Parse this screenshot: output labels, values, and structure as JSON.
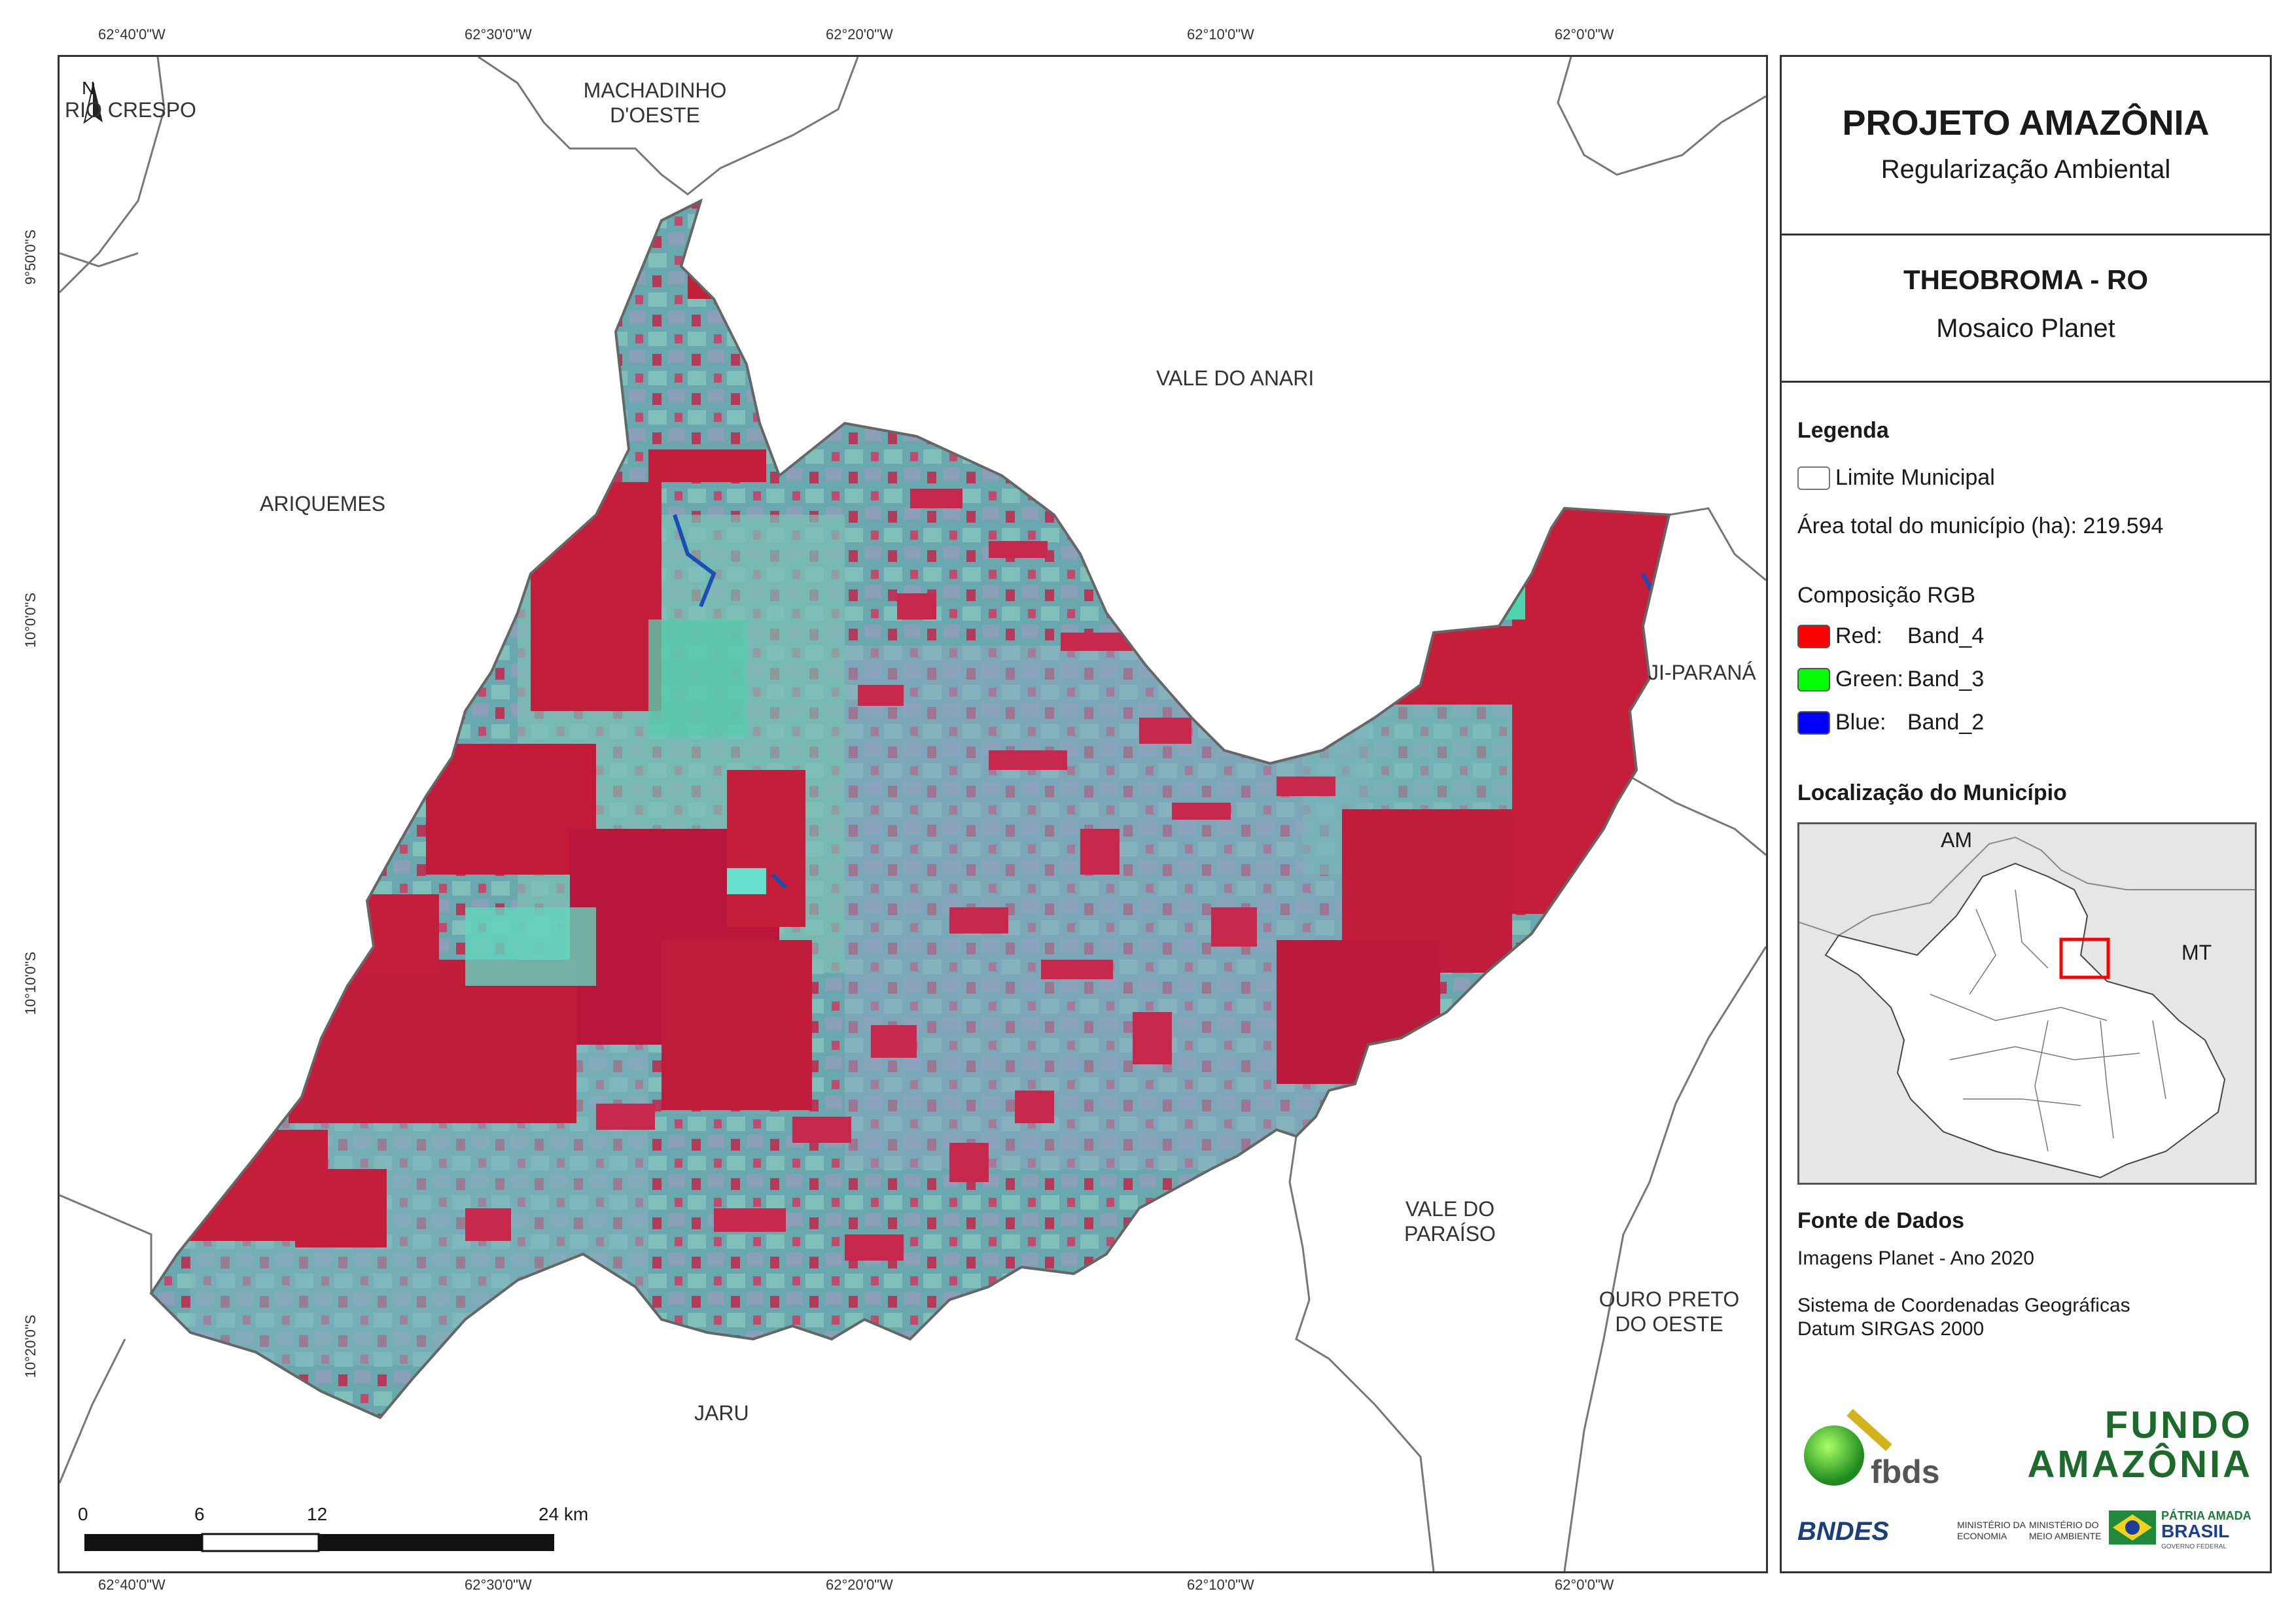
{
  "colors": {
    "frame": "#333333",
    "forest_red": "#c41e3a",
    "pasture_cyan": "#5fb5b0",
    "water_blue": "#1a4db5",
    "legend_red": "#ff0000",
    "legend_green": "#00ff00",
    "legend_blue": "#0000ff",
    "inset_highlight": "#ff0000"
  },
  "coordinates": {
    "top": [
      "62°40'0\"W",
      "62°30'0\"W",
      "62°20'0\"W",
      "62°10'0\"W",
      "62°0'0\"W"
    ],
    "bottom": [
      "62°40'0\"W",
      "62°30'0\"W",
      "62°20'0\"W",
      "62°10'0\"W",
      "62°0'0\"W"
    ],
    "left": [
      "9°50'0\"S",
      "10°0'0\"S",
      "10°10'0\"S",
      "10°20'0\"S"
    ]
  },
  "municipalities": {
    "rio_crespo": "RIO CRESPO",
    "machadinho_1": "MACHADINHO",
    "machadinho_2": "D'OESTE",
    "vale_do_anari": "VALE DO ANARI",
    "ariquemes": "ARIQUEMES",
    "ji_parana": "JI-PARANÁ",
    "vale_paraiso_1": "VALE DO",
    "vale_paraiso_2": "PARAÍSO",
    "ouro_preto_1": "OURO PRETO",
    "ouro_preto_2": "DO OESTE",
    "jaru": "JARU"
  },
  "north_arrow": {
    "label": "N",
    "icon": "north-arrow-icon"
  },
  "scale_bar": {
    "ticks": [
      "0",
      "6",
      "12",
      "24 km"
    ]
  },
  "panel": {
    "project_title": "PROJETO AMAZÔNIA",
    "project_subtitle": "Regularização Ambiental",
    "map_title": "THEOBROMA - RO",
    "map_subtitle": "Mosaico Planet",
    "legend": {
      "heading": "Legenda",
      "boundary": "Limite Municipal",
      "area": "Área total do município (ha): 219.594",
      "composition": "Composição RGB",
      "red_label": "Red:",
      "red_band": "Band_4",
      "green_label": "Green:",
      "green_band": "Band_3",
      "blue_label": "Blue:",
      "blue_band": "Band_2"
    },
    "location": {
      "heading": "Localização do Município",
      "am": "AM",
      "mt": "MT"
    },
    "sources": {
      "heading": "Fonte de Dados",
      "line1": "Imagens Planet - Ano 2020",
      "line2": "Sistema de Coordenadas Geográficas",
      "line3": "Datum SIRGAS 2000"
    },
    "logos": {
      "fbds": "fbds",
      "fundo_1": "FUNDO",
      "fundo_2": "AMAZÔNIA",
      "bndes": "BNDES",
      "min_eco_1": "MINISTÉRIO DA",
      "min_eco_2": "ECONOMIA",
      "min_amb_1": "MINISTÉRIO DO",
      "min_amb_2": "MEIO AMBIENTE",
      "patria": "PÁTRIA AMADA",
      "brasil": "BRASIL",
      "gov": "GOVERNO FEDERAL"
    }
  }
}
